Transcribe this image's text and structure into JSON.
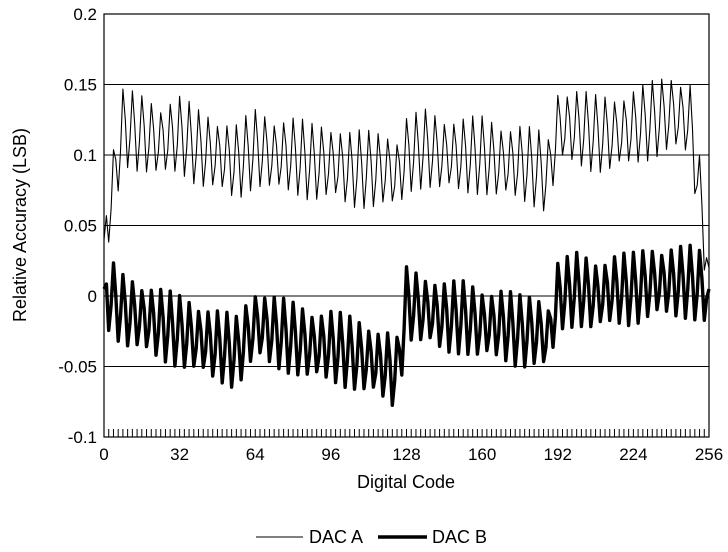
{
  "chart_data": {
    "type": "line",
    "xlabel": "Digital Code",
    "ylabel": "Relative Accuracy (LSB)",
    "xlim": [
      0,
      256
    ],
    "ylim": [
      -0.1,
      0.2
    ],
    "xticks": [
      0,
      32,
      64,
      96,
      128,
      160,
      192,
      224,
      256
    ],
    "xtick_labels": [
      "0",
      "32",
      "64",
      "96",
      "128",
      "160",
      "192",
      "224",
      "256"
    ],
    "yticks": [
      -0.1,
      -0.05,
      0,
      0.05,
      0.1,
      0.15,
      0.2
    ],
    "ytick_labels": [
      "-0.1",
      "-0.05",
      "0",
      "0.05",
      "0.1",
      "0.15",
      "0.2"
    ],
    "grid": "horizontal",
    "legend_position": "bottom",
    "series": [
      {
        "name": "DAC A",
        "style": "thin",
        "color": "#000000",
        "x": [
          0,
          8,
          16,
          24,
          32,
          40,
          48,
          56,
          64,
          72,
          80,
          88,
          96,
          104,
          112,
          120,
          124,
          128,
          136,
          144,
          152,
          160,
          168,
          176,
          184,
          188,
          192,
          200,
          208,
          216,
          224,
          232,
          240,
          248,
          256
        ],
        "values": [
          0.04,
          0.12,
          0.115,
          0.11,
          0.115,
          0.105,
          0.1,
          0.095,
          0.105,
          0.1,
          0.1,
          0.095,
          0.095,
          0.09,
          0.09,
          0.09,
          0.085,
          0.1,
          0.105,
          0.1,
          0.1,
          0.1,
          0.095,
          0.095,
          0.09,
          0.085,
          0.12,
          0.12,
          0.115,
          0.115,
          0.12,
          0.125,
          0.13,
          0.125,
          0.02
        ]
      },
      {
        "name": "DAC B",
        "style": "thick",
        "color": "#000000",
        "x": [
          0,
          8,
          16,
          24,
          32,
          40,
          48,
          56,
          64,
          72,
          80,
          88,
          96,
          104,
          112,
          120,
          124,
          128,
          136,
          144,
          152,
          160,
          168,
          176,
          184,
          188,
          192,
          200,
          208,
          216,
          224,
          232,
          240,
          248,
          256
        ],
        "values": [
          0.005,
          -0.01,
          -0.015,
          -0.02,
          -0.025,
          -0.03,
          -0.035,
          -0.04,
          -0.02,
          -0.025,
          -0.03,
          -0.035,
          -0.035,
          -0.04,
          -0.045,
          -0.05,
          -0.055,
          -0.005,
          -0.01,
          -0.015,
          -0.015,
          -0.02,
          -0.02,
          -0.025,
          -0.025,
          -0.03,
          0.0,
          0.005,
          0.0,
          0.005,
          0.005,
          0.01,
          0.01,
          0.01,
          0.005
        ]
      }
    ]
  }
}
